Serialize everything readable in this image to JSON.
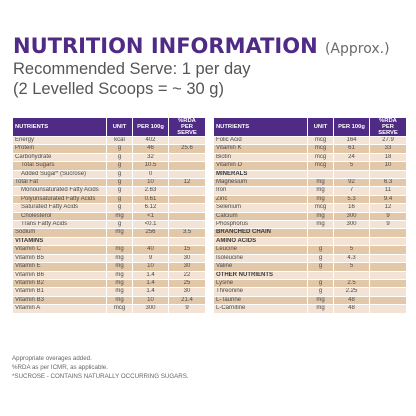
{
  "heading": {
    "title": "NUTRITION INFORMATION",
    "approx": "(Approx.)",
    "line1": "Recommended Serve: 1 per day",
    "line2": "(2 Levelled Scoops = ~ 30 g)"
  },
  "colors": {
    "header": "#4f2b86",
    "row_light": "#f2e3d4",
    "row_dark": "#e3c7a9"
  },
  "headers": {
    "nutrients": "NUTRIENTS",
    "unit": "UNIT",
    "per100": "PER 100g",
    "rda1": "%RDA",
    "rda2": "PER SERVE"
  },
  "left_rows": [
    {
      "name": "Energy",
      "unit": "kcal",
      "per100": "402",
      "rda": "",
      "indent": false,
      "section": false
    },
    {
      "name": "Protein",
      "unit": "g",
      "per100": "46",
      "rda": "25.6",
      "indent": false,
      "section": false
    },
    {
      "name": "Carbohydrate",
      "unit": "g",
      "per100": "32",
      "rda": "",
      "indent": false,
      "section": false
    },
    {
      "name": "Total Sugars",
      "unit": "g",
      "per100": "10.5",
      "rda": "",
      "indent": true,
      "section": false
    },
    {
      "name": "Added Sugar* (Sucrose)",
      "unit": "g",
      "per100": "0",
      "rda": "",
      "indent": true,
      "section": false
    },
    {
      "name": "Total Fat",
      "unit": "g",
      "per100": "10",
      "rda": "12",
      "indent": false,
      "section": false
    },
    {
      "name": "Monounsaturated Fatty Acids",
      "unit": "g",
      "per100": "2.63",
      "rda": "",
      "indent": true,
      "section": false
    },
    {
      "name": "Polyunsaturated Fatty Acids",
      "unit": "g",
      "per100": "0.61",
      "rda": "",
      "indent": true,
      "section": false
    },
    {
      "name": "Saturated Fatty Acids",
      "unit": "g",
      "per100": "6.12",
      "rda": "",
      "indent": true,
      "section": false
    },
    {
      "name": "Cholesterol",
      "unit": "mg",
      "per100": "<1",
      "rda": "",
      "indent": true,
      "section": false
    },
    {
      "name": "Trans Fatty Acids",
      "unit": "g",
      "per100": "<0.1",
      "rda": "",
      "indent": true,
      "section": false
    },
    {
      "name": "Sodium",
      "unit": "mg",
      "per100": "256",
      "rda": "3.5",
      "indent": false,
      "section": false
    },
    {
      "name": "VITAMINS",
      "unit": "",
      "per100": "",
      "rda": "",
      "indent": false,
      "section": true
    },
    {
      "name": "Vitamin C",
      "unit": "mg",
      "per100": "40",
      "rda": "15",
      "indent": false,
      "section": false
    },
    {
      "name": "Vitamin B5",
      "unit": "mg",
      "per100": "9",
      "rda": "30",
      "indent": false,
      "section": false
    },
    {
      "name": "Vitamin E",
      "unit": "mg",
      "per100": "10",
      "rda": "30",
      "indent": false,
      "section": false
    },
    {
      "name": "Vitamin B6",
      "unit": "mg",
      "per100": "1.4",
      "rda": "22",
      "indent": false,
      "section": false
    },
    {
      "name": "Vitamin B2",
      "unit": "mg",
      "per100": "1.4",
      "rda": "25",
      "indent": false,
      "section": false
    },
    {
      "name": "Vitamin B1",
      "unit": "mg",
      "per100": "1.4",
      "rda": "30",
      "indent": false,
      "section": false
    },
    {
      "name": "Vitamin B3",
      "unit": "mg",
      "per100": "10",
      "rda": "21.4",
      "indent": false,
      "section": false
    },
    {
      "name": "Vitamin A",
      "unit": "mcg",
      "per100": "300",
      "rda": "9",
      "indent": false,
      "section": false
    }
  ],
  "right_rows": [
    {
      "name": "Folic Acid",
      "unit": "mcg",
      "per100": "164",
      "rda": "27.9",
      "indent": false,
      "section": false
    },
    {
      "name": "Vitamin K",
      "unit": "mcg",
      "per100": "61",
      "rda": "33",
      "indent": false,
      "section": false
    },
    {
      "name": "Biotin",
      "unit": "mcg",
      "per100": "24",
      "rda": "18",
      "indent": false,
      "section": false
    },
    {
      "name": "Vitamin D",
      "unit": "mcg",
      "per100": "5",
      "rda": "10",
      "indent": false,
      "section": false
    },
    {
      "name": "MINERALS",
      "unit": "",
      "per100": "",
      "rda": "",
      "indent": false,
      "section": true
    },
    {
      "name": "Magnesium",
      "unit": "mg",
      "per100": "92",
      "rda": "6.3",
      "indent": false,
      "section": false
    },
    {
      "name": "Iron",
      "unit": "mg",
      "per100": "7",
      "rda": "11",
      "indent": false,
      "section": false
    },
    {
      "name": "Zinc",
      "unit": "mg",
      "per100": "5.3",
      "rda": "9.4",
      "indent": false,
      "section": false
    },
    {
      "name": "Selenium",
      "unit": "mcg",
      "per100": "16",
      "rda": "12",
      "indent": false,
      "section": false
    },
    {
      "name": "Calcium",
      "unit": "mg",
      "per100": "300",
      "rda": "9",
      "indent": false,
      "section": false
    },
    {
      "name": "Phosphorus",
      "unit": "mg",
      "per100": "300",
      "rda": "9",
      "indent": false,
      "section": false
    },
    {
      "name": "BRANCHED CHAIN",
      "unit": "",
      "per100": "",
      "rda": "",
      "indent": false,
      "section": true
    },
    {
      "name": "AMINO ACIDS",
      "unit": "",
      "per100": "",
      "rda": "",
      "indent": false,
      "section": true
    },
    {
      "name": "Leucine",
      "unit": "g",
      "per100": "5",
      "rda": "",
      "indent": false,
      "section": false
    },
    {
      "name": "Isoleucine",
      "unit": "g",
      "per100": "4.3",
      "rda": "",
      "indent": false,
      "section": false
    },
    {
      "name": "Valine",
      "unit": "g",
      "per100": "5",
      "rda": "",
      "indent": false,
      "section": false
    },
    {
      "name": "OTHER NUTRIENTS",
      "unit": "",
      "per100": "",
      "rda": "",
      "indent": false,
      "section": true
    },
    {
      "name": "Lysine",
      "unit": "g",
      "per100": "2.5",
      "rda": "",
      "indent": false,
      "section": false
    },
    {
      "name": "Threonine",
      "unit": "g",
      "per100": "2.25",
      "rda": "",
      "indent": false,
      "section": false
    },
    {
      "name": "L-Taurine",
      "unit": "mg",
      "per100": "48",
      "rda": "",
      "indent": false,
      "section": false
    },
    {
      "name": "L-Carnitine",
      "unit": "mg",
      "per100": "48",
      "rda": "",
      "indent": false,
      "section": false
    }
  ],
  "footnotes": [
    "Appropriate overages added.",
    "%RDA as per ICMR, as applicable.",
    "*SUCROSE - CONTAINS NATURALLY OCCURRING SUGARS."
  ]
}
